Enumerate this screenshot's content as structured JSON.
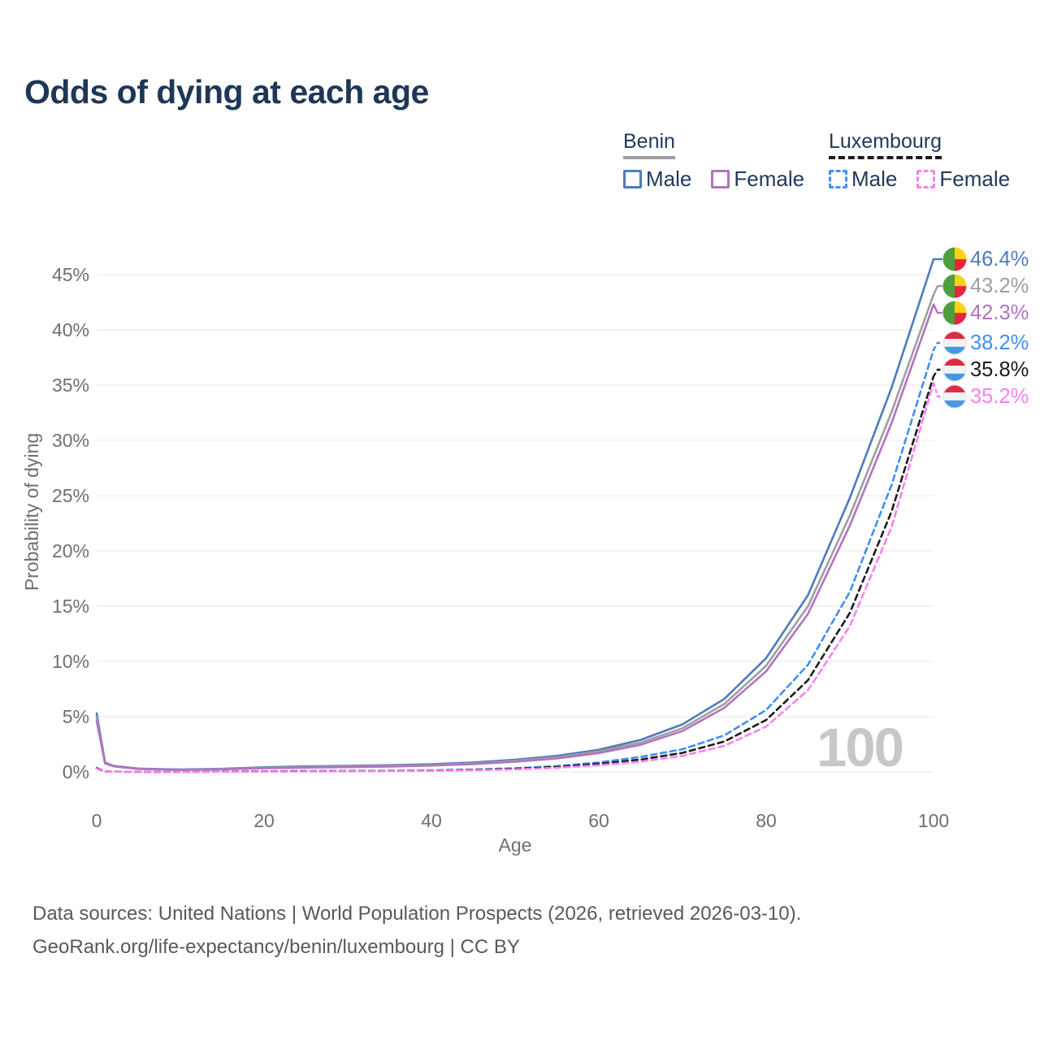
{
  "title": "Odds of dying at each age",
  "legend": {
    "groups": [
      {
        "country": "Benin",
        "items": [
          {
            "label": "Male"
          },
          {
            "label": "Female"
          }
        ]
      },
      {
        "country": "Luxembourg",
        "items": [
          {
            "label": "Male"
          },
          {
            "label": "Female"
          }
        ]
      }
    ]
  },
  "watermark": "100",
  "footer": {
    "line1": "Data sources: United Nations | World Population Prospects (2026, retrieved 2026-03-10).",
    "line2": "GeoRank.org/life-expectancy/benin/luxembourg | CC BY"
  },
  "colors": {
    "title_text": "#1e3756",
    "legend_text": "#213a5c",
    "axis_text": "#6f6f6f",
    "gridline": "#ececec",
    "watermark": "#c7c7c7",
    "footer_text": "#58595b"
  },
  "chart_data": {
    "type": "line",
    "title": "Odds of dying at each age",
    "xlabel": "Age",
    "ylabel": "Probability of dying",
    "xlim": [
      0,
      100
    ],
    "ylim_pct": [
      0,
      47
    ],
    "x_ticks": [
      0,
      20,
      40,
      60,
      80,
      100
    ],
    "y_ticks_pct": [
      0,
      5,
      10,
      15,
      20,
      25,
      30,
      35,
      40,
      45
    ],
    "y_tick_suffix": "%",
    "grid": "horizontal",
    "legend_position": "top-right",
    "x": [
      0,
      1,
      2,
      5,
      10,
      15,
      20,
      25,
      30,
      35,
      40,
      45,
      50,
      55,
      60,
      65,
      70,
      75,
      80,
      85,
      90,
      95,
      100
    ],
    "series": [
      {
        "name": "Benin Male",
        "country": "Benin",
        "sex": "Male",
        "style": "solid",
        "color": "#4d7cbb",
        "end_label": "46.4%",
        "end_value_pct": 46.4,
        "values_pct": [
          5.3,
          0.85,
          0.55,
          0.3,
          0.22,
          0.28,
          0.42,
          0.5,
          0.55,
          0.6,
          0.7,
          0.85,
          1.1,
          1.45,
          2.0,
          2.9,
          4.3,
          6.6,
          10.3,
          16.0,
          24.8,
          34.8,
          46.4
        ]
      },
      {
        "name": "Benin Both sexes",
        "country": "Benin",
        "sex": "Both sexes",
        "style": "solid",
        "color": "#9e9e9e",
        "end_label": "43.2%",
        "end_value_pct": 43.2,
        "values_pct": [
          4.95,
          0.8,
          0.52,
          0.28,
          0.2,
          0.25,
          0.37,
          0.44,
          0.49,
          0.54,
          0.63,
          0.77,
          1.0,
          1.32,
          1.85,
          2.65,
          3.95,
          6.15,
          9.6,
          15.0,
          23.2,
          32.6,
          43.2
        ]
      },
      {
        "name": "Benin Female",
        "country": "Benin",
        "sex": "Female",
        "style": "solid",
        "color": "#b273c0",
        "end_label": "42.3%",
        "end_value_pct": 42.3,
        "values_pct": [
          4.6,
          0.76,
          0.5,
          0.26,
          0.18,
          0.22,
          0.32,
          0.38,
          0.43,
          0.48,
          0.57,
          0.7,
          0.92,
          1.22,
          1.7,
          2.45,
          3.7,
          5.8,
          9.1,
          14.3,
          22.3,
          31.6,
          42.3
        ]
      },
      {
        "name": "Luxembourg Male",
        "country": "Luxembourg",
        "sex": "Male",
        "style": "dashed",
        "color": "#418ff4",
        "end_label": "38.2%",
        "end_value_pct": 38.2,
        "values_pct": [
          0.35,
          0.04,
          0.02,
          0.01,
          0.01,
          0.03,
          0.06,
          0.07,
          0.08,
          0.1,
          0.14,
          0.21,
          0.33,
          0.52,
          0.85,
          1.35,
          2.05,
          3.3,
          5.6,
          9.7,
          16.3,
          26.0,
          38.2
        ]
      },
      {
        "name": "Luxembourg Both sexes",
        "country": "Luxembourg",
        "sex": "Both sexes",
        "style": "dashed",
        "color": "#1c1c1c",
        "end_label": "35.8%",
        "end_value_pct": 35.8,
        "values_pct": [
          0.32,
          0.03,
          0.02,
          0.01,
          0.01,
          0.02,
          0.05,
          0.06,
          0.07,
          0.09,
          0.12,
          0.18,
          0.28,
          0.44,
          0.72,
          1.12,
          1.72,
          2.75,
          4.7,
          8.3,
          14.4,
          23.6,
          35.8
        ]
      },
      {
        "name": "Luxembourg Female",
        "country": "Luxembourg",
        "sex": "Female",
        "style": "dashed",
        "color": "#fb80ef",
        "end_label": "35.2%",
        "end_value_pct": 35.2,
        "values_pct": [
          0.29,
          0.03,
          0.02,
          0.01,
          0.01,
          0.02,
          0.03,
          0.04,
          0.05,
          0.07,
          0.1,
          0.15,
          0.23,
          0.37,
          0.6,
          0.93,
          1.45,
          2.35,
          4.1,
          7.4,
          13.2,
          22.2,
          35.2
        ]
      }
    ],
    "flags": {
      "Benin": {
        "green": "#4f9e3e",
        "yellow": "#fcd117",
        "red": "#e8253a"
      },
      "Luxembourg": {
        "red": "#d92d44",
        "white": "#f3f3f4",
        "blue": "#4598e2"
      }
    },
    "annotations": [
      {
        "text": "100",
        "role": "age-watermark"
      }
    ]
  }
}
